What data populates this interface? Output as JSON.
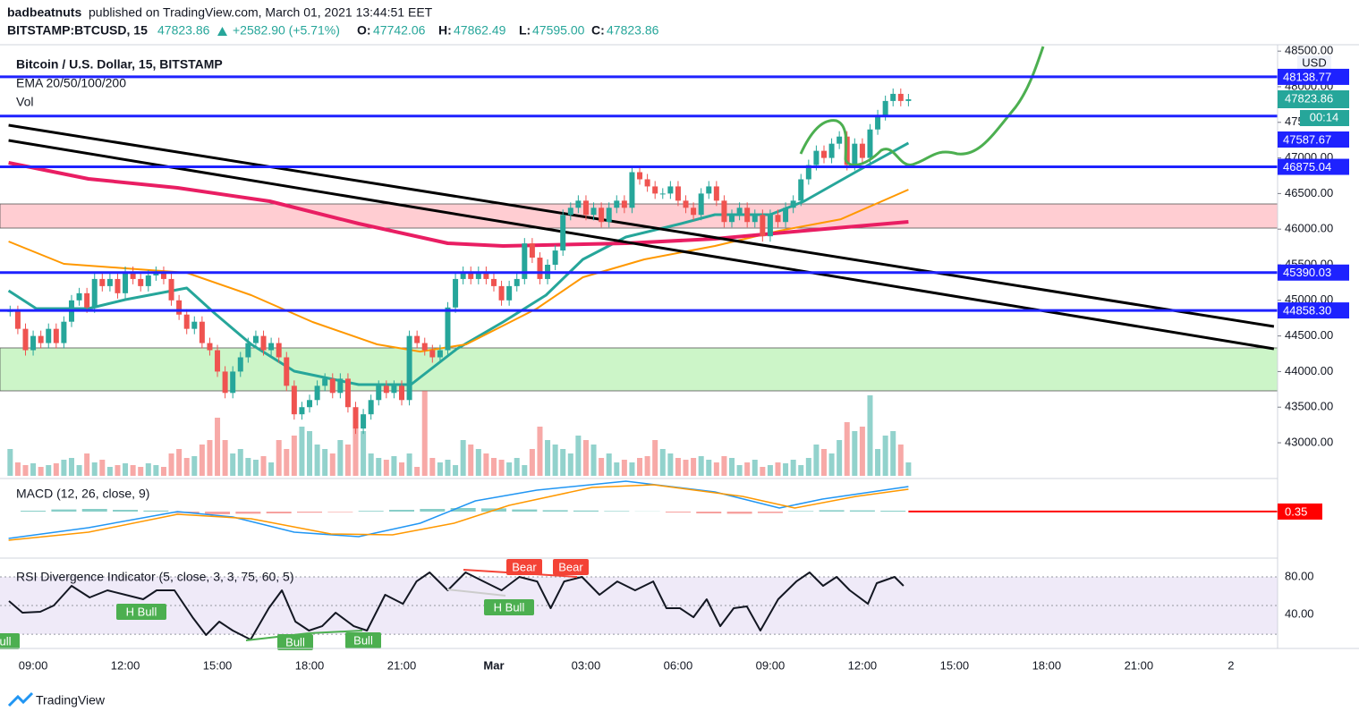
{
  "header": {
    "author": "badbeatnuts",
    "published": "published on TradingView.com, March 01, 2021 13:44:51 EET",
    "symbol": "BITSTAMP:BTCUSD, 15",
    "last": "47823.86",
    "change": "+2582.90 (+5.71%)",
    "ohlc": [
      {
        "key": "O:",
        "value": "47742.06"
      },
      {
        "key": "H:",
        "value": "47862.49"
      },
      {
        "key": "L:",
        "value": "47595.00"
      },
      {
        "key": "C:",
        "value": "47823.86"
      }
    ]
  },
  "footer": {
    "brand": "TradingView"
  },
  "chart_data": {
    "type": "candlestick",
    "title": "Bitcoin / U.S. Dollar, 15, BITSTAMP",
    "indicator_label": "EMA 20/50/100/200",
    "volume_label": "Vol",
    "currency": "USD",
    "countdown": "00:14",
    "up_color": "#26a69a",
    "down_color": "#ef5350",
    "level_color": "#1e22ff",
    "xlim": [
      7.92,
      49.52
    ],
    "ylim": [
      42498,
      48590
    ],
    "xticks": [
      {
        "value": 9,
        "label": "09:00"
      },
      {
        "value": 12,
        "label": "12:00"
      },
      {
        "value": 15,
        "label": "15:00"
      },
      {
        "value": 18,
        "label": "18:00"
      },
      {
        "value": 21,
        "label": "21:00"
      },
      {
        "value": 24,
        "label": "Mar"
      },
      {
        "value": 27,
        "label": "03:00"
      },
      {
        "value": 30,
        "label": "06:00"
      },
      {
        "value": 33,
        "label": "09:00"
      },
      {
        "value": 36,
        "label": "12:00"
      },
      {
        "value": 39,
        "label": "15:00"
      },
      {
        "value": 42,
        "label": "18:00"
      },
      {
        "value": 45,
        "label": "21:00"
      },
      {
        "value": 48,
        "label": "2"
      }
    ],
    "yticks": [
      {
        "value": 43000,
        "label": "43000.00"
      },
      {
        "value": 43500,
        "label": "43500.00"
      },
      {
        "value": 44000,
        "label": "44000.00"
      },
      {
        "value": 44500,
        "label": "44500.00"
      },
      {
        "value": 45000,
        "label": "45000.00"
      },
      {
        "value": 45500,
        "label": "45500.00"
      },
      {
        "value": 46000,
        "label": "46000.00"
      },
      {
        "value": 46500,
        "label": "46500.00"
      },
      {
        "value": 47000,
        "label": "47000.00"
      },
      {
        "value": 47500,
        "label": "47500.00"
      },
      {
        "value": 48000,
        "label": "48000.00"
      },
      {
        "value": 48500,
        "label": "48500.00"
      }
    ],
    "x": [
      8.25,
      8.5,
      8.75,
      9,
      9.25,
      9.5,
      9.75,
      10,
      10.25,
      10.5,
      10.75,
      11,
      11.25,
      11.5,
      11.75,
      12,
      12.25,
      12.5,
      12.75,
      13,
      13.25,
      13.5,
      13.75,
      14,
      14.25,
      14.5,
      14.75,
      15,
      15.25,
      15.5,
      15.75,
      16,
      16.25,
      16.5,
      16.75,
      17,
      17.25,
      17.5,
      17.75,
      18,
      18.25,
      18.5,
      18.75,
      19,
      19.25,
      19.5,
      19.75,
      20,
      20.25,
      20.5,
      20.75,
      21,
      21.25,
      21.5,
      21.75,
      22,
      22.25,
      22.5,
      22.75,
      23,
      23.25,
      23.5,
      23.75,
      24,
      24.25,
      24.5,
      24.75,
      25,
      25.25,
      25.5,
      25.75,
      26,
      26.25,
      26.5,
      26.75,
      27,
      27.25,
      27.5,
      27.75,
      28,
      28.25,
      28.5,
      28.75,
      29,
      29.25,
      29.5,
      29.75,
      30,
      30.25,
      30.5,
      30.75,
      31,
      31.25,
      31.5,
      31.75,
      32,
      32.25,
      32.5,
      32.75,
      33,
      33.25,
      33.5,
      33.75,
      34,
      34.25,
      34.5,
      34.75,
      35,
      35.25,
      35.5,
      35.75,
      36,
      36.25,
      36.5,
      36.75,
      37,
      37.25,
      37.5
    ],
    "close": [
      44850,
      44600,
      44300,
      44500,
      44400,
      44600,
      44400,
      44700,
      45000,
      45100,
      44900,
      45300,
      45200,
      45300,
      45100,
      45400,
      45300,
      45200,
      45350,
      45400,
      45300,
      45000,
      44800,
      44600,
      44700,
      44400,
      44300,
      44000,
      43700,
      44000,
      44200,
      44400,
      44500,
      44300,
      44400,
      44200,
      43800,
      43400,
      43500,
      43600,
      43800,
      43900,
      43700,
      43900,
      43500,
      43200,
      43400,
      43600,
      43800,
      43700,
      43800,
      43600,
      44500,
      44400,
      44300,
      44200,
      44300,
      44900,
      45300,
      45400,
      45300,
      45400,
      45300,
      45200,
      45000,
      45200,
      45300,
      45800,
      45600,
      45300,
      45500,
      45700,
      46200,
      46300,
      46400,
      46200,
      46300,
      46100,
      46300,
      46400,
      46300,
      46800,
      46700,
      46600,
      46500,
      46500,
      46600,
      46400,
      46300,
      46200,
      46500,
      46600,
      46400,
      46100,
      46200,
      46300,
      46100,
      46200,
      45900,
      46200,
      46100,
      46300,
      46400,
      46700,
      46900,
      47100,
      47000,
      47200,
      47300,
      46900,
      47200,
      47000,
      47400,
      47600,
      47800,
      47900,
      47800,
      47823.86
    ],
    "volume_ylim": [
      0,
      100
    ],
    "volume": [
      30,
      15,
      12,
      14,
      10,
      12,
      14,
      18,
      20,
      12,
      25,
      15,
      18,
      10,
      12,
      14,
      12,
      10,
      14,
      12,
      10,
      25,
      30,
      20,
      22,
      35,
      40,
      65,
      40,
      25,
      30,
      20,
      18,
      22,
      15,
      40,
      30,
      45,
      55,
      50,
      35,
      30,
      25,
      40,
      35,
      60,
      50,
      25,
      20,
      18,
      22,
      15,
      25,
      10,
      95,
      20,
      15,
      18,
      12,
      40,
      35,
      30,
      25,
      20,
      18,
      15,
      20,
      12,
      30,
      55,
      40,
      35,
      30,
      25,
      45,
      40,
      35,
      20,
      25,
      15,
      18,
      15,
      20,
      22,
      40,
      30,
      25,
      20,
      18,
      20,
      22,
      18,
      15,
      22,
      20,
      12,
      15,
      18,
      10,
      12,
      15,
      14,
      18,
      12,
      20,
      35,
      30,
      25,
      40,
      60,
      50,
      55,
      90,
      30,
      45,
      50,
      35,
      15
    ],
    "emas": [
      {
        "color": "#26a69a",
        "x": [
          8.2,
          9.1,
          10.8,
          12,
          14,
          14.9,
          16.1,
          17.5,
          19.6,
          21.3,
          22.8,
          24.3,
          25.7,
          26.9,
          28.3,
          30.1,
          31.2,
          33,
          34.1,
          35.9,
          37.5
        ],
        "values": [
          45136,
          44884,
          44884,
          45010,
          45173,
          44822,
          44382,
          44005,
          43817,
          43817,
          44319,
          44696,
          45073,
          45575,
          45889,
          46078,
          46204,
          46204,
          46392,
          46832,
          47209
        ]
      },
      {
        "color": "#ff9800",
        "x": [
          8.2,
          10,
          12,
          14,
          16.1,
          18.1,
          20.2,
          21.6,
          23.1,
          25.4,
          26.9,
          28.9,
          31.2,
          33.3,
          35.3,
          37.5
        ],
        "values": [
          45827,
          45513,
          45450,
          45387,
          45073,
          44696,
          44382,
          44281,
          44382,
          44884,
          45324,
          45575,
          45764,
          45977,
          46140,
          46555
        ]
      },
      {
        "color": "#e91e63",
        "x": [
          8.2,
          10.8,
          13.7,
          16.7,
          19.6,
          22.5,
          24.3,
          28.3,
          31.2,
          34.1,
          37.5
        ],
        "values": [
          46932,
          46706,
          46580,
          46392,
          46078,
          45802,
          45764,
          45802,
          45864,
          45977,
          46103
        ]
      }
    ],
    "trendlines": [
      {
        "color": "#000000",
        "x": [
          8.2,
          49.4
        ],
        "values": [
          47460,
          44633
        ]
      },
      {
        "color": "#000000",
        "x": [
          8.2,
          49.4
        ],
        "values": [
          47246,
          44319
        ]
      }
    ],
    "zones": [
      {
        "from": 46015,
        "to": 46354,
        "color": "#ffcdd2"
      },
      {
        "from": 43729,
        "to": 44332,
        "color": "#ccf5c8"
      }
    ],
    "levels": [
      48138.77,
      47587.67,
      46875.04,
      45390.03,
      {
        "value": 44858.3,
        "label": "44858.30"
      }
    ],
    "macd": {
      "label": "MACD (12, 26, close, 9)",
      "ylim": [
        -250,
        180
      ],
      "last": 0.35,
      "last_color": "#ff0000",
      "line": {
        "color": "#2196f3",
        "x": [
          8.2,
          10.8,
          13.7,
          15.5,
          17.5,
          19.6,
          21.6,
          23.4,
          25.4,
          28.3,
          31.2,
          33.3,
          34.7,
          37.5
        ],
        "values": [
          -150,
          -90,
          0,
          -30,
          -115,
          -140,
          -65,
          60,
          120,
          170,
          110,
          20,
          70,
          140
        ]
      },
      "signal": {
        "color": "#ff9800",
        "x": [
          8.2,
          10.8,
          13.7,
          16.1,
          18.7,
          20.7,
          22.7,
          24.5,
          27.2,
          29.2,
          32.1,
          33.8,
          35.8,
          37.5
        ],
        "values": [
          -160,
          -115,
          -15,
          -40,
          -125,
          -130,
          -65,
          35,
          135,
          150,
          85,
          20,
          85,
          125
        ]
      },
      "histogram": {
        "x": [
          9,
          10,
          11,
          12,
          13,
          14,
          15,
          16,
          17,
          18,
          19,
          20,
          21,
          22,
          23,
          24,
          25,
          26,
          27,
          28,
          29,
          30,
          31,
          32,
          33,
          34,
          35,
          36,
          37
        ],
        "values": [
          5,
          12,
          15,
          10,
          6,
          -8,
          -15,
          -12,
          -10,
          -6,
          -3,
          4,
          10,
          15,
          20,
          18,
          12,
          8,
          6,
          3,
          1,
          -5,
          -10,
          -12,
          -8,
          3,
          8,
          7,
          5
        ]
      }
    },
    "rsi": {
      "label": "RSI Divergence Indicator (5, close, 3, 3, 75, 60, 5)",
      "ylim": [
        4.8,
        98.1
      ],
      "band": [
        19,
        80
      ],
      "mid": 49.5,
      "color": "#131722",
      "yticks": [
        {
          "value": 80,
          "label": "80.00"
        },
        {
          "value": 40,
          "label": "40.00"
        }
      ],
      "x": [
        8.21,
        8.65,
        9.23,
        9.67,
        10.25,
        10.84,
        11.42,
        12.0,
        12.58,
        13.02,
        13.6,
        14.19,
        14.63,
        15.06,
        15.5,
        16.08,
        16.67,
        17.1,
        17.54,
        17.98,
        18.41,
        18.85,
        19.44,
        19.87,
        20.46,
        21.04,
        21.48,
        21.91,
        22.5,
        23.08,
        23.67,
        24.25,
        24.83,
        25.41,
        25.85,
        26.29,
        26.87,
        27.44,
        28.02,
        28.6,
        29.19,
        29.62,
        30.06,
        30.5,
        30.93,
        31.37,
        31.81,
        32.24,
        32.68,
        33.26,
        33.85,
        34.28,
        34.72,
        35.16,
        35.59,
        36.18,
        36.47,
        37.05,
        37.34
      ],
      "values": [
        54.3,
        41.9,
        42.9,
        49.5,
        70.5,
        58.1,
        65.7,
        61,
        56.2,
        65.7,
        65.7,
        37.1,
        18.1,
        32.4,
        22.9,
        13.3,
        46.7,
        65.7,
        32.4,
        22.9,
        27.6,
        41.9,
        27.6,
        22.9,
        61,
        51.4,
        75.2,
        84.8,
        65.7,
        84.8,
        75.2,
        65.7,
        80,
        75.2,
        46.7,
        75.2,
        80,
        61,
        75.2,
        65.7,
        75.2,
        46.7,
        46.7,
        37.1,
        56.2,
        27.6,
        46.7,
        48.6,
        22.9,
        56.2,
        75.2,
        84.8,
        70.5,
        80,
        65.7,
        51.4,
        73.3,
        80,
        70.5
      ],
      "divergence_labels": [
        {
          "text": "Bear",
          "kind": "bear"
        },
        {
          "text": "Bear",
          "kind": "bear"
        },
        {
          "text": "H Bull",
          "kind": "bull"
        },
        {
          "text": "H Bull",
          "kind": "bull"
        },
        {
          "text": "Bull",
          "kind": "bull"
        },
        {
          "text": "Bull",
          "kind": "bull"
        },
        {
          "text": "ull",
          "kind": "bull"
        }
      ]
    }
  }
}
